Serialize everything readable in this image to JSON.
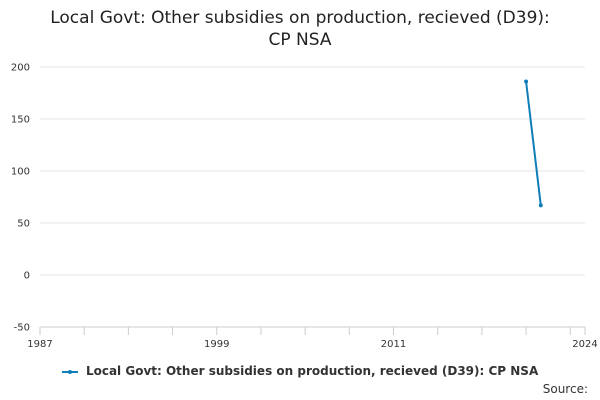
{
  "chart_data": {
    "type": "line",
    "title": "Local Govt: Other subsidies on production, recieved (D39):\nCP NSA",
    "xlabel": "",
    "ylabel": "",
    "xlim": [
      1987,
      2024
    ],
    "ylim": [
      -50,
      200
    ],
    "x_ticks": [
      "1987",
      "1999",
      "2011",
      "2024"
    ],
    "y_ticks": [
      "200",
      "150",
      "100",
      "50",
      "0",
      "-50"
    ],
    "grid": "horizontal",
    "legend_position": "bottom",
    "series": [
      {
        "name": "Local Govt: Other subsidies on production, recieved (D39): CP NSA",
        "color": "#0f7db8",
        "x": [
          2020,
          2021
        ],
        "y": [
          186,
          67
        ]
      }
    ]
  },
  "source_label": "Source:"
}
